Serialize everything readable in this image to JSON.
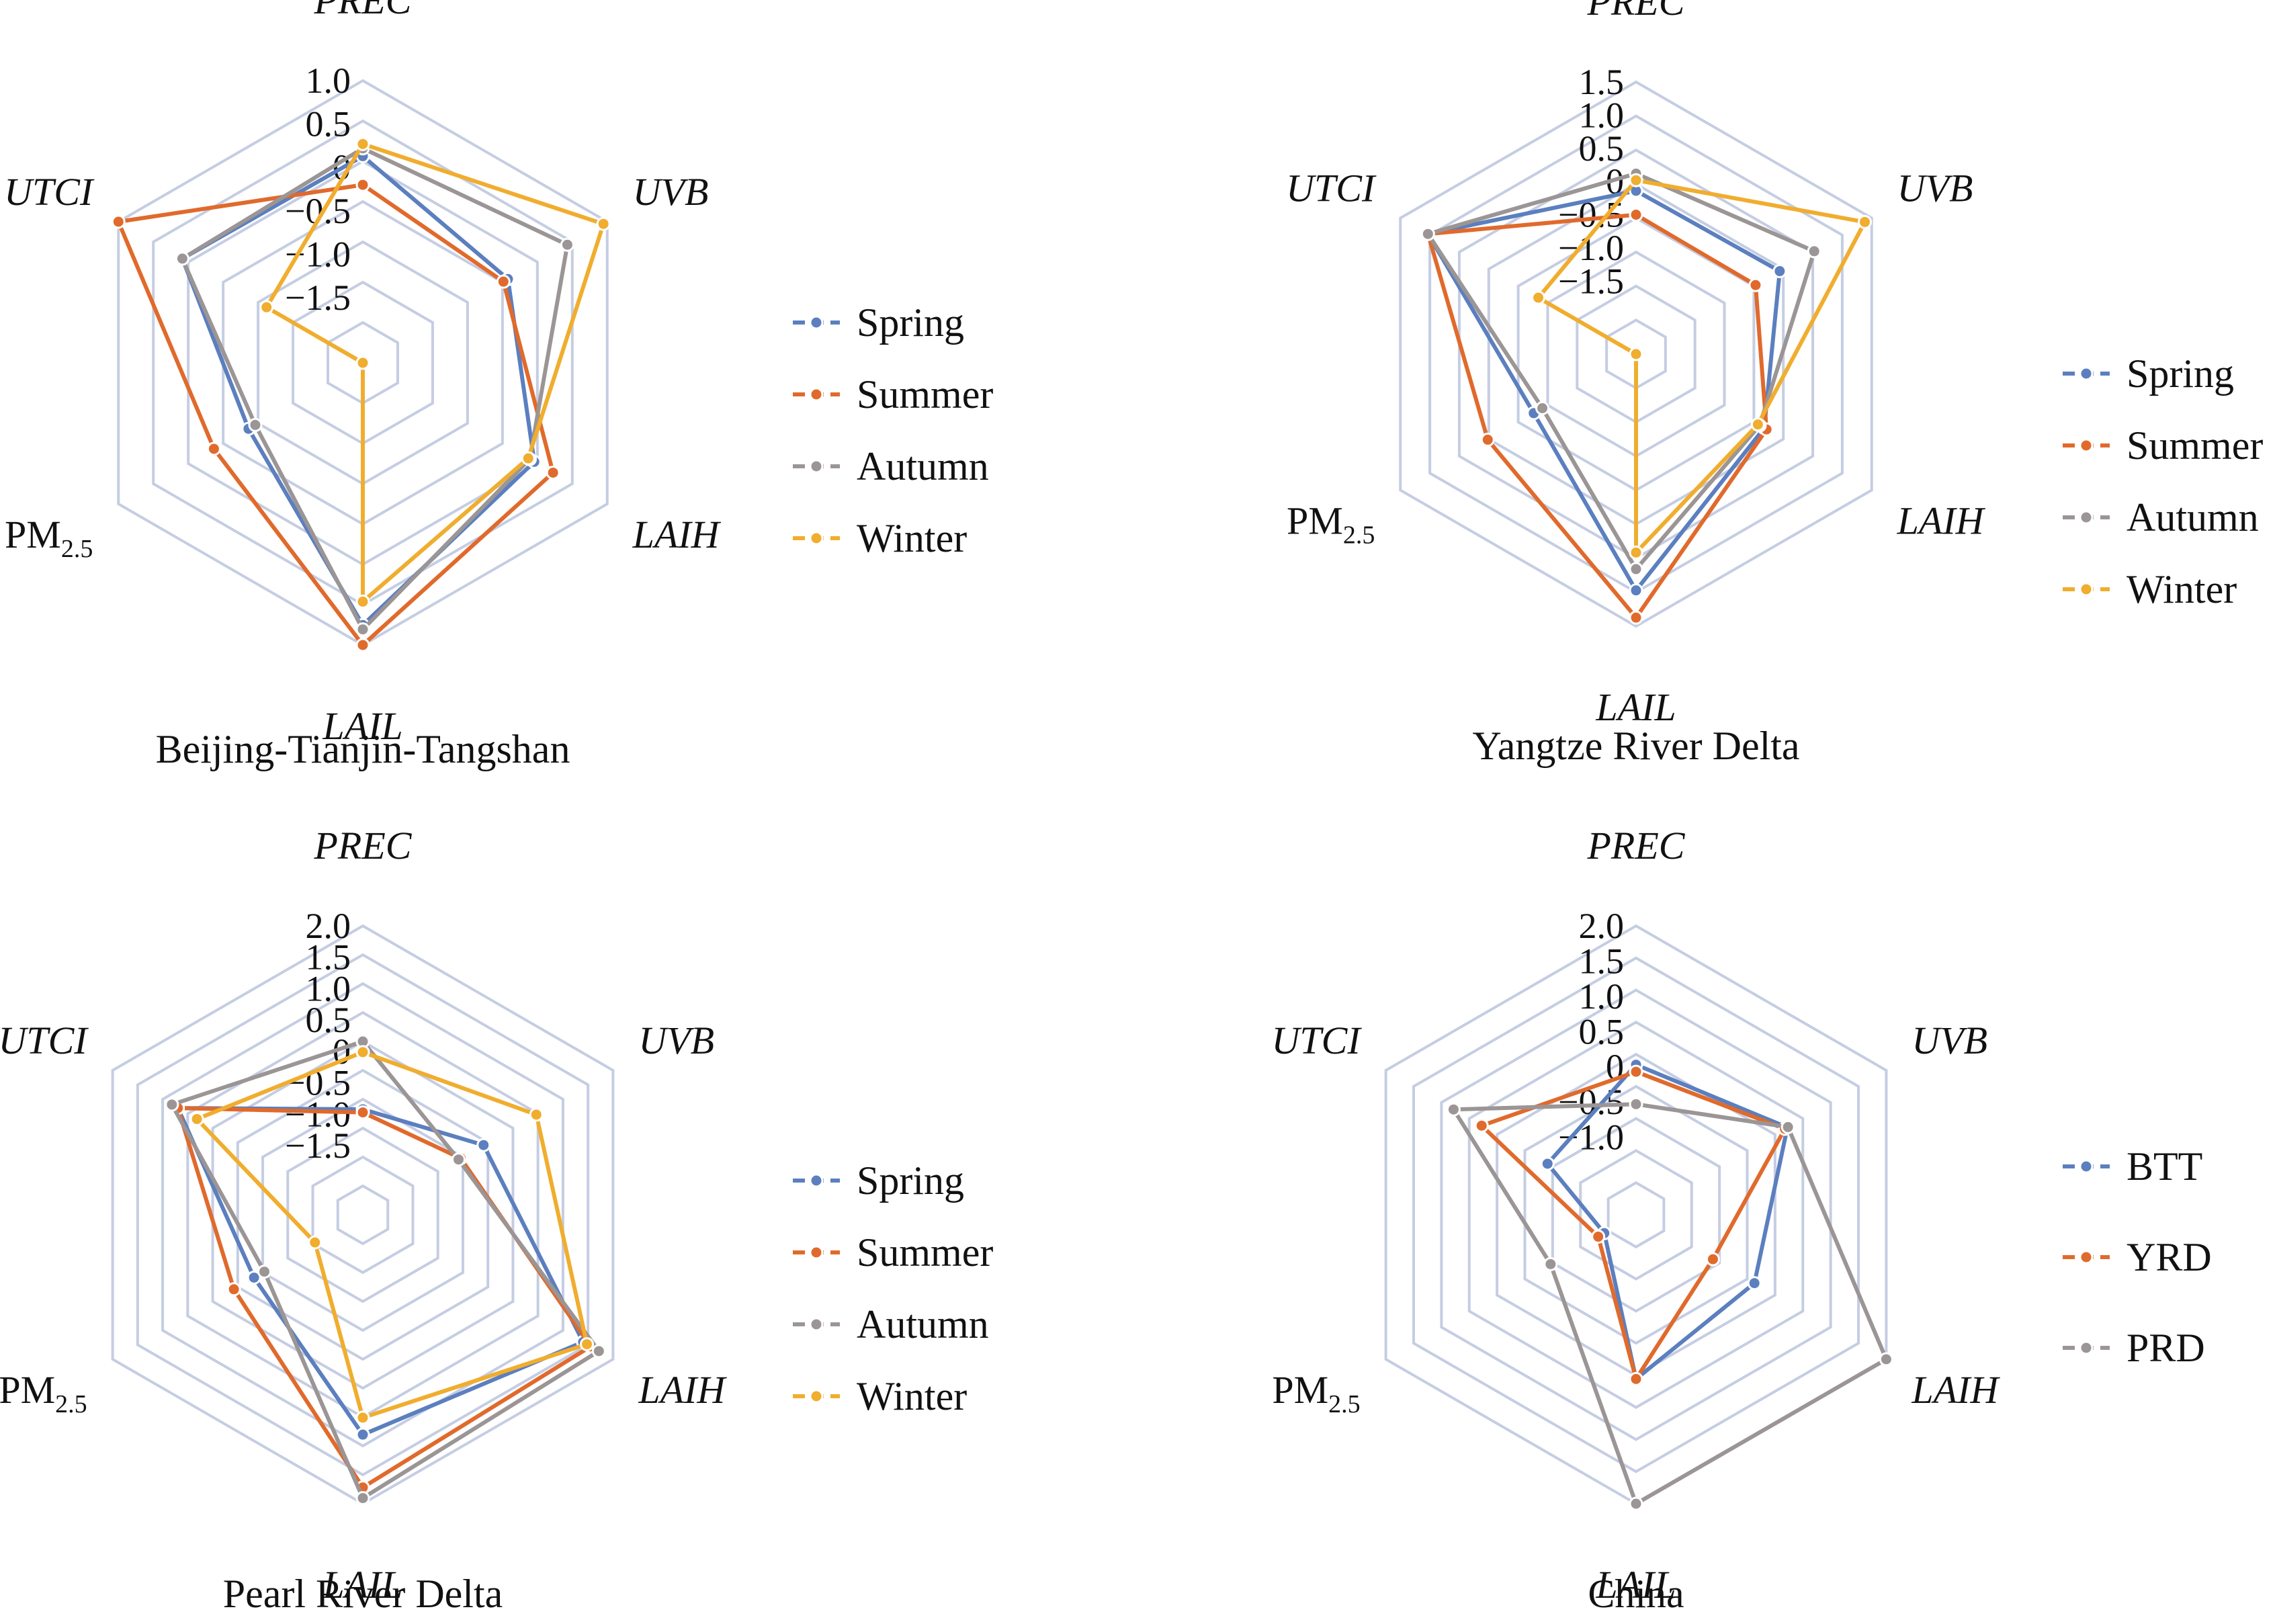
{
  "chart_data": [
    {
      "type": "radar",
      "title": "Beijing-Tianjin-Tangshan",
      "axes": [
        "PREC",
        "UVB",
        "LAIH",
        "LAIL",
        "PM2.5",
        "UTCI"
      ],
      "ticks": [
        "1.0",
        "0.5",
        "0",
        "−0.5",
        "−1.0",
        "−1.5"
      ],
      "rlim": [
        -2.25,
        1.0
      ],
      "series": [
        {
          "name": "Spring",
          "color": "#5b7fbf",
          "values": [
            0.13,
            -0.32,
            0.03,
            0.77,
            -0.73,
            0.15
          ]
        },
        {
          "name": "Summer",
          "color": "#e06a2c",
          "values": [
            -0.2,
            -0.38,
            0.28,
            1.0,
            -0.27,
            1.0
          ]
        },
        {
          "name": "Autumn",
          "color": "#9b9595",
          "values": [
            0.22,
            0.47,
            -0.03,
            0.82,
            -0.82,
            0.15
          ]
        },
        {
          "name": "Winter",
          "color": "#f0ad2e",
          "values": [
            0.27,
            0.95,
            -0.05,
            0.5,
            -2.25,
            -0.97
          ]
        }
      ],
      "legend": "right"
    },
    {
      "type": "radar",
      "title": "Yangtze River Delta",
      "axes": [
        "PREC",
        "UVB",
        "LAIH",
        "LAIL",
        "PM2.5",
        "UTCI"
      ],
      "ticks": [
        "1.5",
        "1.0",
        "0.5",
        "0",
        "−0.5",
        "−1.0",
        "−1.5"
      ],
      "rlim": [
        -2.6,
        1.5
      ],
      "series": [
        {
          "name": "Spring",
          "color": "#5b7fbf",
          "values": [
            -0.14,
            -0.1,
            -0.37,
            0.96,
            -0.82,
            1.02
          ]
        },
        {
          "name": "Summer",
          "color": "#e06a2c",
          "values": [
            -0.5,
            -0.52,
            -0.33,
            1.37,
            -0.02,
            1.02
          ]
        },
        {
          "name": "Autumn",
          "color": "#9b9595",
          "values": [
            0.12,
            0.5,
            -0.45,
            0.64,
            -0.97,
            1.02
          ]
        },
        {
          "name": "Winter",
          "color": "#f0ad2e",
          "values": [
            0.02,
            1.38,
            -0.48,
            0.39,
            -2.6,
            -0.9
          ]
        }
      ],
      "legend": "right"
    },
    {
      "type": "radar",
      "title": "Pearl River Delta",
      "axes": [
        "PREC",
        "UVB",
        "LAIH",
        "LAIL",
        "PM2.5",
        "UTCI"
      ],
      "ticks": [
        "2.0",
        "1.5",
        "1.0",
        "0.5",
        "0",
        "−0.5",
        "−1.0",
        "−1.5"
      ],
      "rlim": [
        -2.6,
        2.0
      ],
      "series": [
        {
          "name": "Spring",
          "color": "#5b7fbf",
          "values": [
            -0.92,
            -0.38,
            1.45,
            0.9,
            -0.6,
            0.8
          ]
        },
        {
          "name": "Summer",
          "color": "#e06a2c",
          "values": [
            -0.97,
            -0.8,
            1.59,
            1.74,
            -0.23,
            0.8
          ]
        },
        {
          "name": "Autumn",
          "color": "#9b9595",
          "values": [
            0.16,
            -0.84,
            1.74,
            1.91,
            -0.79,
            0.91
          ]
        },
        {
          "name": "Winter",
          "color": "#f0ad2e",
          "values": [
            -0.01,
            0.59,
            1.52,
            0.63,
            -1.72,
            0.45
          ]
        }
      ],
      "legend": "right"
    },
    {
      "type": "radar",
      "title": "China",
      "axes": [
        "PREC",
        "UVB",
        "LAIH",
        "LAIL",
        "PM2.5",
        "UTCI"
      ],
      "ticks": [
        "2.0",
        "1.5",
        "1.0",
        "0.5",
        "0",
        "−0.5",
        "−1.0"
      ],
      "rlim": [
        -2.1,
        2.0
      ],
      "series": [
        {
          "name": "BTT",
          "color": "#5b7fbf",
          "values": [
            0.03,
            0.38,
            -0.16,
            0.23,
            -1.58,
            -0.65
          ]
        },
        {
          "name": "YRD",
          "color": "#e06a2c",
          "values": [
            -0.07,
            0.34,
            -0.84,
            0.23,
            -1.48,
            0.43
          ]
        },
        {
          "name": "PRD",
          "color": "#9b9595",
          "values": [
            -0.53,
            0.39,
            2.0,
            2.0,
            -0.7,
            0.89
          ]
        }
      ],
      "legend": "right"
    }
  ]
}
